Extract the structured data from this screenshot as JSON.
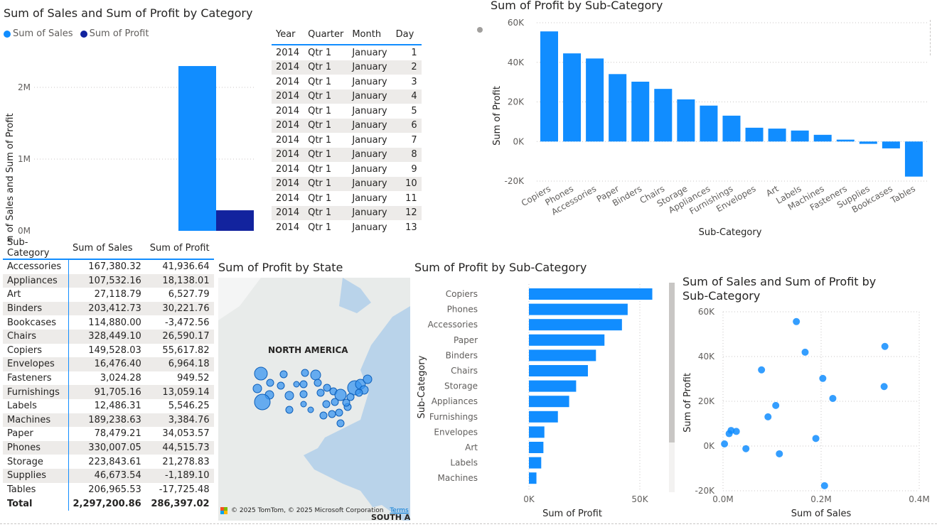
{
  "v1": {
    "title": "Sum of Sales and Sum of Profit by Category",
    "legend": [
      {
        "label": "Sum of Sales",
        "color": "#118DFF"
      },
      {
        "label": "Sum of Profit",
        "color": "#12239E"
      }
    ],
    "ylabel": "Sum of Sales and Sum of Profit",
    "ticks": [
      "2M",
      "1M",
      "0M"
    ]
  },
  "v1_chart_data": {
    "type": "bar",
    "series": [
      {
        "name": "Sum of Sales",
        "values": [
          2297200.86
        ]
      },
      {
        "name": "Sum of Profit",
        "values": [
          286397.02
        ]
      }
    ],
    "ylim": [
      0,
      2800000
    ]
  },
  "date_table": {
    "headers": [
      "Year",
      "Quarter",
      "Month",
      "Day"
    ],
    "rows": [
      [
        "2014",
        "Qtr 1",
        "January",
        "1"
      ],
      [
        "2014",
        "Qtr 1",
        "January",
        "2"
      ],
      [
        "2014",
        "Qtr 1",
        "January",
        "3"
      ],
      [
        "2014",
        "Qtr 1",
        "January",
        "4"
      ],
      [
        "2014",
        "Qtr 1",
        "January",
        "5"
      ],
      [
        "2014",
        "Qtr 1",
        "January",
        "6"
      ],
      [
        "2014",
        "Qtr 1",
        "January",
        "7"
      ],
      [
        "2014",
        "Qtr 1",
        "January",
        "8"
      ],
      [
        "2014",
        "Qtr 1",
        "January",
        "9"
      ],
      [
        "2014",
        "Qtr 1",
        "January",
        "10"
      ],
      [
        "2014",
        "Qtr 1",
        "January",
        "11"
      ],
      [
        "2014",
        "Qtr 1",
        "January",
        "12"
      ],
      [
        "2014",
        "Qtr 1",
        "January",
        "13"
      ]
    ]
  },
  "v3": {
    "title": "Sum of Profit by Sub-Category",
    "ylabel": "Sum of Profit",
    "xlabel": "Sub-Category",
    "ticks": [
      "60K",
      "40K",
      "20K",
      "0K",
      "-20K"
    ]
  },
  "chart_data": [
    {
      "type": "bar",
      "title": "Sum of Profit by Sub-Category",
      "xlabel": "Sub-Category",
      "ylabel": "Sum of Profit",
      "categories": [
        "Copiers",
        "Phones",
        "Accessories",
        "Paper",
        "Binders",
        "Chairs",
        "Storage",
        "Appliances",
        "Furnishings",
        "Envelopes",
        "Art",
        "Labels",
        "Machines",
        "Fasteners",
        "Supplies",
        "Bookcases",
        "Tables"
      ],
      "values": [
        55617.82,
        44515.73,
        41936.64,
        34053.57,
        30221.76,
        26590.17,
        21278.83,
        18138.01,
        13059.14,
        6964.18,
        6527.79,
        5546.25,
        3384.76,
        949.52,
        -1189.1,
        -3472.56,
        -17725.48
      ],
      "ylim": [
        -20000,
        60000
      ]
    },
    {
      "type": "bar",
      "title": "Sum of Profit by Sub-Category",
      "xlabel": "Sum of Profit",
      "ylabel": "Sub-Category",
      "categories": [
        "Copiers",
        "Phones",
        "Accessories",
        "Paper",
        "Binders",
        "Chairs",
        "Storage",
        "Appliances",
        "Furnishings",
        "Envelopes",
        "Art",
        "Labels",
        "Machines"
      ],
      "values": [
        55617.82,
        44515.73,
        41936.64,
        34053.57,
        30221.76,
        26590.17,
        21278.83,
        18138.01,
        13059.14,
        6964.18,
        6527.79,
        5546.25,
        3384.76
      ],
      "xlim": [
        0,
        55617.82
      ]
    },
    {
      "type": "scatter",
      "title": "Sum of Sales and Sum of Profit by Sub-Category",
      "xlabel": "Sum of Sales",
      "ylabel": "Sum of Profit",
      "points": [
        [
          167380.32,
          41936.64
        ],
        [
          107532.16,
          18138.01
        ],
        [
          27118.79,
          6527.79
        ],
        [
          203412.73,
          30221.76
        ],
        [
          114880.0,
          -3472.56
        ],
        [
          328449.1,
          26590.17
        ],
        [
          149528.03,
          55617.82
        ],
        [
          16476.4,
          6964.18
        ],
        [
          3024.28,
          949.52
        ],
        [
          91705.16,
          13059.14
        ],
        [
          12486.31,
          5546.25
        ],
        [
          189238.63,
          3384.76
        ],
        [
          78479.21,
          34053.57
        ],
        [
          330007.05,
          44515.73
        ],
        [
          223843.61,
          21278.83
        ],
        [
          46673.54,
          -1189.1
        ],
        [
          206965.53,
          -17725.48
        ]
      ],
      "xlim": [
        0,
        400000
      ],
      "ylim": [
        -20000,
        60000
      ]
    }
  ],
  "subcat_table": {
    "headers": [
      "Sub-Category",
      "Sum of Sales",
      "Sum of Profit"
    ],
    "rows": [
      [
        "Accessories",
        "167,380.32",
        "41,936.64"
      ],
      [
        "Appliances",
        "107,532.16",
        "18,138.01"
      ],
      [
        "Art",
        "27,118.79",
        "6,527.79"
      ],
      [
        "Binders",
        "203,412.73",
        "30,221.76"
      ],
      [
        "Bookcases",
        "114,880.00",
        "-3,472.56"
      ],
      [
        "Chairs",
        "328,449.10",
        "26,590.17"
      ],
      [
        "Copiers",
        "149,528.03",
        "55,617.82"
      ],
      [
        "Envelopes",
        "16,476.40",
        "6,964.18"
      ],
      [
        "Fasteners",
        "3,024.28",
        "949.52"
      ],
      [
        "Furnishings",
        "91,705.16",
        "13,059.14"
      ],
      [
        "Labels",
        "12,486.31",
        "5,546.25"
      ],
      [
        "Machines",
        "189,238.63",
        "3,384.76"
      ],
      [
        "Paper",
        "78,479.21",
        "34,053.57"
      ],
      [
        "Phones",
        "330,007.05",
        "44,515.73"
      ],
      [
        "Storage",
        "223,843.61",
        "21,278.83"
      ],
      [
        "Supplies",
        "46,673.54",
        "-1,189.10"
      ],
      [
        "Tables",
        "206,965.53",
        "-17,725.48"
      ]
    ],
    "total": [
      "Total",
      "2,297,200.86",
      "286,397.02"
    ]
  },
  "map": {
    "title": "Sum of Profit by State",
    "region_label": "NORTH AMERICA",
    "region_label_south": "SOUTH AI",
    "attribution": "© 2025 TomTom, © 2025 Microsoft Corporation",
    "terms": "Terms"
  },
  "v5": {
    "xlabel": "Sum of Profit",
    "ylabel": "Sub-Category",
    "ticks": [
      "0K",
      "50K"
    ]
  },
  "v6": {
    "title_line1": "Sum of Sales and Sum of Profit by",
    "title_line2": "Sub-Category",
    "xlabel": "Sum of Sales",
    "ylabel": "Sum of Profit",
    "yticks": [
      "60K",
      "40K",
      "20K",
      "0K",
      "-20K"
    ],
    "xticks": [
      "0.0M",
      "0.2M",
      "0.4M"
    ]
  }
}
